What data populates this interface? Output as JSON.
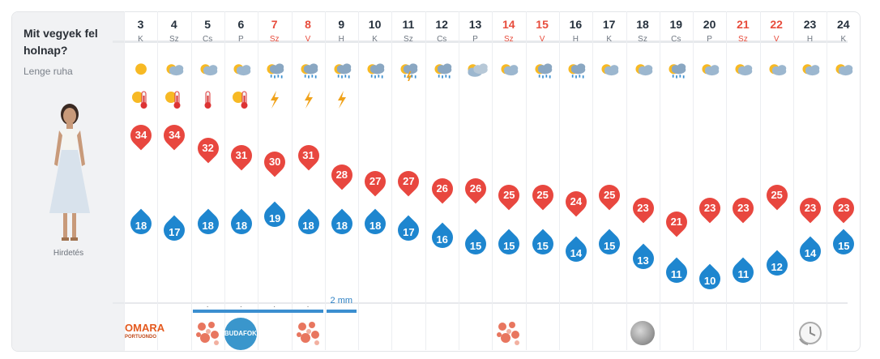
{
  "sidebar": {
    "title": "Mit vegyek fel holnap?",
    "subtitle": "Lenge ruha",
    "ad_label": "Hirdetés"
  },
  "days": [
    {
      "day": "3",
      "weekday": "K",
      "weekend": false,
      "max": "34",
      "min": "18",
      "icon1": "sun",
      "icon2": "thermometer-sun"
    },
    {
      "day": "4",
      "weekday": "Sz",
      "weekend": false,
      "max": "34",
      "min": "17",
      "icon1": "sun-cloud",
      "icon2": "thermometer-sun"
    },
    {
      "day": "5",
      "weekday": "Cs",
      "weekend": false,
      "max": "32",
      "min": "18",
      "icon1": "sun-cloud",
      "icon2": "thermometer"
    },
    {
      "day": "6",
      "weekday": "P",
      "weekend": false,
      "max": "31",
      "min": "18",
      "icon1": "sun-cloud",
      "icon2": "thermometer-sun"
    },
    {
      "day": "7",
      "weekday": "Sz",
      "weekend": true,
      "max": "30",
      "min": "19",
      "icon1": "rain-sun",
      "icon2": "lightning"
    },
    {
      "day": "8",
      "weekday": "V",
      "weekend": true,
      "max": "31",
      "min": "18",
      "icon1": "rain-sun",
      "icon2": "lightning"
    },
    {
      "day": "9",
      "weekday": "H",
      "weekend": false,
      "max": "28",
      "min": "18",
      "icon1": "rain-sun",
      "icon2": "lightning"
    },
    {
      "day": "10",
      "weekday": "K",
      "weekend": false,
      "max": "27",
      "min": "18",
      "icon1": "rain-sun",
      "icon2": ""
    },
    {
      "day": "11",
      "weekday": "Sz",
      "weekend": false,
      "max": "27",
      "min": "17",
      "icon1": "storm-sun",
      "icon2": ""
    },
    {
      "day": "12",
      "weekday": "Cs",
      "weekend": false,
      "max": "26",
      "min": "16",
      "icon1": "rain-sun",
      "icon2": ""
    },
    {
      "day": "13",
      "weekday": "P",
      "weekend": false,
      "max": "26",
      "min": "15",
      "icon1": "cloud-sun",
      "icon2": ""
    },
    {
      "day": "14",
      "weekday": "Sz",
      "weekend": true,
      "max": "25",
      "min": "15",
      "icon1": "sun-cloud",
      "icon2": ""
    },
    {
      "day": "15",
      "weekday": "V",
      "weekend": true,
      "max": "25",
      "min": "15",
      "icon1": "rain-sun",
      "icon2": ""
    },
    {
      "day": "16",
      "weekday": "H",
      "weekend": false,
      "max": "24",
      "min": "14",
      "icon1": "rain-sun",
      "icon2": ""
    },
    {
      "day": "17",
      "weekday": "K",
      "weekend": false,
      "max": "25",
      "min": "15",
      "icon1": "sun-cloud",
      "icon2": ""
    },
    {
      "day": "18",
      "weekday": "Sz",
      "weekend": false,
      "max": "23",
      "min": "13",
      "icon1": "sun-cloud",
      "icon2": ""
    },
    {
      "day": "19",
      "weekday": "Cs",
      "weekend": false,
      "max": "21",
      "min": "11",
      "icon1": "rain-sun",
      "icon2": ""
    },
    {
      "day": "20",
      "weekday": "P",
      "weekend": false,
      "max": "23",
      "min": "10",
      "icon1": "sun-cloud",
      "icon2": ""
    },
    {
      "day": "21",
      "weekday": "Sz",
      "weekend": true,
      "max": "23",
      "min": "11",
      "icon1": "sun-cloud",
      "icon2": ""
    },
    {
      "day": "22",
      "weekday": "V",
      "weekend": true,
      "max": "25",
      "min": "12",
      "icon1": "sun-cloud",
      "icon2": ""
    },
    {
      "day": "23",
      "weekday": "H",
      "weekend": false,
      "max": "23",
      "min": "14",
      "icon1": "sun-cloud",
      "icon2": ""
    },
    {
      "day": "24",
      "weekday": "K",
      "weekend": false,
      "max": "23",
      "min": "15",
      "icon1": "sun-cloud",
      "icon2": ""
    }
  ],
  "rain": {
    "dots": [
      ".",
      ".",
      ".",
      "."
    ],
    "amount_label": "2 mm"
  },
  "bottom_row": {
    "logo_text": "OMARA",
    "logo_sub": "PORTUONDO",
    "budafok_text": "BUDAFOK"
  },
  "colors": {
    "max_pin": "#e8473f",
    "min_drop": "#1e86cf",
    "weekend_text": "#e74c3c"
  }
}
